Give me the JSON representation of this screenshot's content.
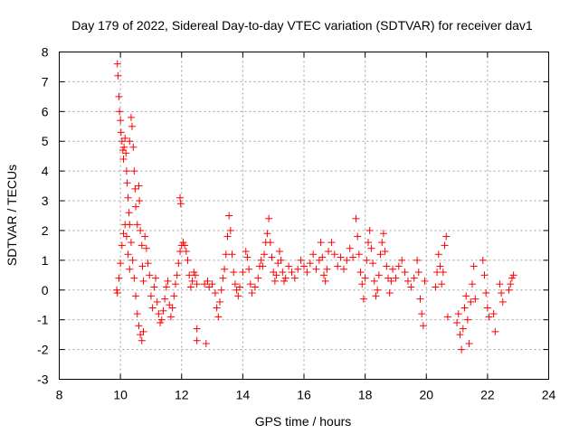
{
  "chart_data": {
    "type": "scatter",
    "title": "Day 179 of 2022, Sidereal Day-to-day VTEC variation (SDTVAR) for receiver dav1",
    "xlabel": "GPS time / hours",
    "ylabel": "SDTVAR / TECUs",
    "xlim": [
      8,
      24
    ],
    "ylim": [
      -3,
      8
    ],
    "xticks": [
      "8",
      "10",
      "12",
      "14",
      "16",
      "18",
      "20",
      "22",
      "24"
    ],
    "yticks": [
      "-3",
      "-2",
      "-1",
      "0",
      "1",
      "2",
      "3",
      "4",
      "5",
      "6",
      "7",
      "8"
    ],
    "grid": true,
    "marker": "+",
    "color": "#ff0000",
    "series": [
      {
        "name": "SDTVAR",
        "points": [
          [
            9.9,
            7.6
          ],
          [
            9.92,
            7.2
          ],
          [
            9.95,
            6.5
          ],
          [
            9.97,
            6.0
          ],
          [
            10.0,
            5.7
          ],
          [
            10.02,
            5.3
          ],
          [
            10.05,
            5.0
          ],
          [
            10.08,
            4.7
          ],
          [
            10.1,
            4.4
          ],
          [
            10.12,
            4.8
          ],
          [
            10.15,
            5.1
          ],
          [
            10.18,
            4.6
          ],
          [
            10.2,
            4.0
          ],
          [
            10.22,
            3.6
          ],
          [
            10.25,
            3.1
          ],
          [
            10.28,
            2.6
          ],
          [
            10.3,
            2.2
          ],
          [
            10.35,
            1.6
          ],
          [
            10.4,
            1.0
          ],
          [
            10.45,
            0.4
          ],
          [
            10.5,
            -0.2
          ],
          [
            10.55,
            -0.8
          ],
          [
            10.6,
            -1.2
          ],
          [
            10.65,
            -1.5
          ],
          [
            10.7,
            -1.7
          ],
          [
            10.75,
            -1.4
          ],
          [
            9.88,
            0.0
          ],
          [
            9.9,
            -0.1
          ],
          [
            9.95,
            0.4
          ],
          [
            10.0,
            0.9
          ],
          [
            10.05,
            1.5
          ],
          [
            10.1,
            1.9
          ],
          [
            10.15,
            2.2
          ],
          [
            10.2,
            1.8
          ],
          [
            10.25,
            1.2
          ],
          [
            10.3,
            0.7
          ],
          [
            10.3,
            5.0
          ],
          [
            10.35,
            5.8
          ],
          [
            10.38,
            5.5
          ],
          [
            10.42,
            4.8
          ],
          [
            10.45,
            4.0
          ],
          [
            10.48,
            3.4
          ],
          [
            10.5,
            2.8
          ],
          [
            10.55,
            2.2
          ],
          [
            10.6,
            3.5
          ],
          [
            10.62,
            3.0
          ],
          [
            10.65,
            2.0
          ],
          [
            10.7,
            1.5
          ],
          [
            10.72,
            0.8
          ],
          [
            10.75,
            0.3
          ],
          [
            10.8,
            1.8
          ],
          [
            10.85,
            1.4
          ],
          [
            10.9,
            0.9
          ],
          [
            10.95,
            0.5
          ],
          [
            11.0,
            -0.2
          ],
          [
            11.05,
            -0.6
          ],
          [
            11.1,
            0.1
          ],
          [
            11.15,
            0.4
          ],
          [
            11.2,
            -0.4
          ],
          [
            11.25,
            -0.8
          ],
          [
            11.3,
            -1.1
          ],
          [
            11.35,
            -1.0
          ],
          [
            11.4,
            -0.7
          ],
          [
            11.45,
            -0.3
          ],
          [
            11.5,
            0.1
          ],
          [
            11.55,
            0.3
          ],
          [
            11.6,
            -0.5
          ],
          [
            11.65,
            -0.9
          ],
          [
            11.7,
            -0.6
          ],
          [
            11.75,
            -0.2
          ],
          [
            11.8,
            0.2
          ],
          [
            11.85,
            0.5
          ],
          [
            11.9,
            0.9
          ],
          [
            11.95,
            1.3
          ],
          [
            11.95,
            3.1
          ],
          [
            11.97,
            2.9
          ],
          [
            12.0,
            1.5
          ],
          [
            12.05,
            1.6
          ],
          [
            12.1,
            1.5
          ],
          [
            12.15,
            1.3
          ],
          [
            12.2,
            1.0
          ],
          [
            12.25,
            0.5
          ],
          [
            12.3,
            0.1
          ],
          [
            12.35,
            0.3
          ],
          [
            12.4,
            0.6
          ],
          [
            12.45,
            0.5
          ],
          [
            12.5,
            0.2
          ],
          [
            12.5,
            -1.3
          ],
          [
            12.5,
            -1.7
          ],
          [
            12.8,
            -1.8
          ],
          [
            12.75,
            0.2
          ],
          [
            12.85,
            0.3
          ],
          [
            12.9,
            0.1
          ],
          [
            13.0,
            0.2
          ],
          [
            13.1,
            -0.1
          ],
          [
            13.15,
            -0.6
          ],
          [
            13.2,
            -0.9
          ],
          [
            13.25,
            -0.4
          ],
          [
            13.3,
            0.0
          ],
          [
            13.35,
            0.4
          ],
          [
            13.4,
            0.7
          ],
          [
            13.45,
            1.2
          ],
          [
            13.5,
            1.8
          ],
          [
            13.55,
            2.5
          ],
          [
            13.6,
            2.0
          ],
          [
            13.65,
            1.2
          ],
          [
            13.7,
            0.6
          ],
          [
            13.75,
            0.2
          ],
          [
            13.8,
            0.0
          ],
          [
            13.85,
            -0.2
          ],
          [
            13.9,
            0.1
          ],
          [
            14.0,
            0.6
          ],
          [
            14.1,
            1.3
          ],
          [
            14.15,
            1.1
          ],
          [
            14.2,
            0.7
          ],
          [
            14.25,
            0.2
          ],
          [
            14.3,
            -0.1
          ],
          [
            14.4,
            0.1
          ],
          [
            14.5,
            0.4
          ],
          [
            14.55,
            0.8
          ],
          [
            14.6,
            1.0
          ],
          [
            14.65,
            0.8
          ],
          [
            14.7,
            1.2
          ],
          [
            14.75,
            1.6
          ],
          [
            14.8,
            1.9
          ],
          [
            14.85,
            2.4
          ],
          [
            14.9,
            1.6
          ],
          [
            14.95,
            1.1
          ],
          [
            15.0,
            0.6
          ],
          [
            15.05,
            0.3
          ],
          [
            15.1,
            0.5
          ],
          [
            15.15,
            0.9
          ],
          [
            15.2,
            1.3
          ],
          [
            15.25,
            1.0
          ],
          [
            15.3,
            0.6
          ],
          [
            15.35,
            0.3
          ],
          [
            15.4,
            0.4
          ],
          [
            15.5,
            0.8
          ],
          [
            15.6,
            0.6
          ],
          [
            15.7,
            0.4
          ],
          [
            15.8,
            0.7
          ],
          [
            15.9,
            1.0
          ],
          [
            16.0,
            0.8
          ],
          [
            16.1,
            0.6
          ],
          [
            16.2,
            0.9
          ],
          [
            16.3,
            1.2
          ],
          [
            16.4,
            0.7
          ],
          [
            16.5,
            1.0
          ],
          [
            16.55,
            1.6
          ],
          [
            16.6,
            1.1
          ],
          [
            16.65,
            0.5
          ],
          [
            16.7,
            0.3
          ],
          [
            16.75,
            0.7
          ],
          [
            16.8,
            1.3
          ],
          [
            16.9,
            1.6
          ],
          [
            17.0,
            1.2
          ],
          [
            17.1,
            0.8
          ],
          [
            17.2,
            1.1
          ],
          [
            17.3,
            0.7
          ],
          [
            17.4,
            1.0
          ],
          [
            17.5,
            1.4
          ],
          [
            17.6,
            1.1
          ],
          [
            17.7,
            2.4
          ],
          [
            17.75,
            1.8
          ],
          [
            17.8,
            1.2
          ],
          [
            17.85,
            0.6
          ],
          [
            17.9,
            0.2
          ],
          [
            17.95,
            -0.3
          ],
          [
            18.0,
            0.4
          ],
          [
            18.05,
            1.0
          ],
          [
            18.1,
            1.6
          ],
          [
            18.15,
            2.0
          ],
          [
            18.2,
            1.4
          ],
          [
            18.25,
            0.9
          ],
          [
            18.3,
            0.3
          ],
          [
            18.35,
            -0.2
          ],
          [
            18.4,
            0.0
          ],
          [
            18.45,
            0.5
          ],
          [
            18.5,
            1.2
          ],
          [
            18.55,
            1.6
          ],
          [
            18.6,
            1.9
          ],
          [
            18.65,
            1.3
          ],
          [
            18.7,
            0.8
          ],
          [
            18.75,
            0.4
          ],
          [
            18.8,
            -0.1
          ],
          [
            18.85,
            0.3
          ],
          [
            18.9,
            0.7
          ],
          [
            19.0,
            0.4
          ],
          [
            19.1,
            0.8
          ],
          [
            19.2,
            1.0
          ],
          [
            19.3,
            0.6
          ],
          [
            19.4,
            0.3
          ],
          [
            19.5,
            0.1
          ],
          [
            19.6,
            0.4
          ],
          [
            19.7,
            1.0
          ],
          [
            19.75,
            0.6
          ],
          [
            19.8,
            -0.3
          ],
          [
            19.85,
            -0.8
          ],
          [
            19.9,
            -1.2
          ],
          [
            19.95,
            0.3
          ],
          [
            20.3,
            0.1
          ],
          [
            20.35,
            0.6
          ],
          [
            20.4,
            1.2
          ],
          [
            20.45,
            0.8
          ],
          [
            20.5,
            0.2
          ],
          [
            20.55,
            0.6
          ],
          [
            20.6,
            1.5
          ],
          [
            20.65,
            1.8
          ],
          [
            20.7,
            -0.9
          ],
          [
            21.0,
            -1.1
          ],
          [
            21.05,
            -0.8
          ],
          [
            21.1,
            -1.5
          ],
          [
            21.15,
            -2.0
          ],
          [
            21.2,
            -1.3
          ],
          [
            21.25,
            -0.6
          ],
          [
            21.3,
            -0.2
          ],
          [
            21.35,
            -1.0
          ],
          [
            21.4,
            -1.8
          ],
          [
            21.45,
            -0.4
          ],
          [
            21.5,
            0.2
          ],
          [
            21.55,
            0.8
          ],
          [
            21.6,
            -0.3
          ],
          [
            21.85,
            1.0
          ],
          [
            21.9,
            0.5
          ],
          [
            21.95,
            -0.1
          ],
          [
            22.0,
            -0.6
          ],
          [
            22.05,
            -0.9
          ],
          [
            22.2,
            -0.8
          ],
          [
            22.25,
            -1.4
          ],
          [
            22.4,
            0.2
          ],
          [
            22.45,
            -0.1
          ],
          [
            22.5,
            -0.4
          ],
          [
            22.7,
            0.0
          ],
          [
            22.75,
            0.2
          ],
          [
            22.8,
            0.4
          ],
          [
            22.85,
            0.5
          ]
        ]
      }
    ]
  }
}
